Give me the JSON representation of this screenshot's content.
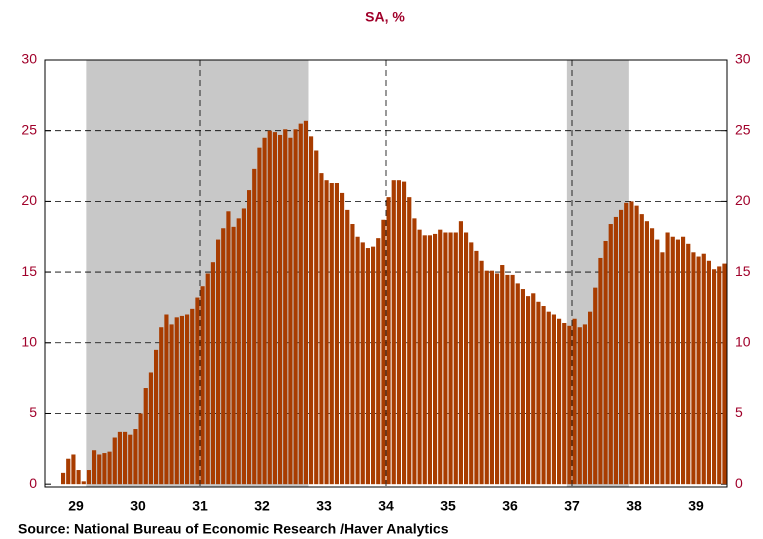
{
  "chart_data": {
    "type": "bar",
    "title": "SA, %",
    "source": "Source:  National Bureau of Economic Research /Haver Analytics",
    "color": "#a83c00",
    "axis_label_color": "#a0002a",
    "shade_color": "#c8c8c8",
    "xlim": [
      29,
      40
    ],
    "ylim": [
      -0.2,
      30
    ],
    "yticks": [
      0,
      5,
      10,
      15,
      20,
      25,
      30
    ],
    "y2ticks": [
      0,
      5,
      10,
      15,
      20,
      25,
      30
    ],
    "xticks": [
      {
        "value": 29.5,
        "label": "29"
      },
      {
        "value": 30.5,
        "label": "30"
      },
      {
        "value": 31.5,
        "label": "31"
      },
      {
        "value": 32.5,
        "label": "32"
      },
      {
        "value": 33.5,
        "label": "33"
      },
      {
        "value": 34.5,
        "label": "34"
      },
      {
        "value": 35.5,
        "label": "35"
      },
      {
        "value": 36.5,
        "label": "36"
      },
      {
        "value": 37.5,
        "label": "37"
      },
      {
        "value": 38.5,
        "label": "38"
      },
      {
        "value": 39.5,
        "label": "39"
      }
    ],
    "xgrid": [
      31.5,
      34.5,
      37.5
    ],
    "grid": true,
    "shaded_ranges": [
      [
        29.667,
        33.25
      ],
      [
        37.417,
        38.417
      ]
    ],
    "x": [
      29,
      29.083,
      29.167,
      29.25,
      29.333,
      29.417,
      29.5,
      29.583,
      29.667,
      29.75,
      29.833,
      29.917,
      30,
      30.083,
      30.167,
      30.25,
      30.333,
      30.417,
      30.5,
      30.583,
      30.667,
      30.75,
      30.833,
      30.917,
      31,
      31.083,
      31.167,
      31.25,
      31.333,
      31.417,
      31.5,
      31.583,
      31.667,
      31.75,
      31.833,
      31.917,
      32,
      32.083,
      32.167,
      32.25,
      32.333,
      32.417,
      32.5,
      32.583,
      32.667,
      32.75,
      32.833,
      32.917,
      33,
      33.083,
      33.167,
      33.25,
      33.333,
      33.417,
      33.5,
      33.583,
      33.667,
      33.75,
      33.833,
      33.917,
      34,
      34.083,
      34.167,
      34.25,
      34.333,
      34.417,
      34.5,
      34.583,
      34.667,
      34.75,
      34.833,
      34.917,
      35,
      35.083,
      35.167,
      35.25,
      35.333,
      35.417,
      35.5,
      35.583,
      35.667,
      35.75,
      35.833,
      35.917,
      36,
      36.083,
      36.167,
      36.25,
      36.333,
      36.417,
      36.5,
      36.583,
      36.667,
      36.75,
      36.833,
      36.917,
      37,
      37.083,
      37.167,
      37.25,
      37.333,
      37.417,
      37.5,
      37.583,
      37.667,
      37.75,
      37.833,
      37.917,
      38,
      38.083,
      38.167,
      38.25,
      38.333,
      38.417,
      38.5,
      38.583,
      38.667,
      38.75,
      38.833,
      38.917,
      39,
      39.083,
      39.167,
      39.25,
      39.333,
      39.417,
      39.5,
      39.583,
      39.667,
      39.75,
      39.833,
      39.917
    ],
    "values": [
      0,
      0,
      0,
      0.8,
      1.8,
      2.1,
      1.0,
      0.2,
      1.0,
      2.4,
      2.1,
      2.2,
      2.3,
      3.3,
      3.7,
      3.7,
      3.5,
      3.9,
      5.0,
      6.8,
      7.9,
      9.5,
      11.1,
      12.0,
      11.3,
      11.8,
      11.9,
      12.0,
      12.4,
      13.2,
      14.0,
      14.9,
      15.7,
      17.3,
      18.1,
      19.3,
      18.2,
      18.8,
      19.5,
      20.8,
      22.3,
      23.8,
      24.5,
      25.0,
      24.9,
      24.7,
      25.1,
      24.5,
      25.1,
      25.5,
      25.7,
      24.6,
      23.6,
      22.0,
      21.5,
      21.3,
      21.3,
      20.6,
      19.4,
      18.4,
      17.5,
      17.1,
      16.7,
      16.8,
      17.4,
      18.7,
      20.3,
      21.5,
      21.5,
      21.4,
      20.3,
      18.8,
      18.0,
      17.6,
      17.6,
      17.7,
      18.0,
      17.8,
      17.8,
      17.8,
      18.6,
      17.8,
      17.1,
      16.5,
      15.8,
      15.1,
      15.1,
      14.9,
      15.5,
      14.8,
      14.8,
      14.2,
      13.8,
      13.3,
      13.5,
      12.9,
      12.6,
      12.2,
      12.0,
      11.7,
      11.4,
      11.2,
      11.7,
      11.1,
      11.3,
      12.2,
      13.9,
      16.0,
      17.2,
      18.4,
      18.9,
      19.4,
      19.9,
      20.0,
      19.7,
      19.1,
      18.6,
      18.1,
      17.3,
      16.4,
      17.8,
      17.5,
      17.3,
      17.5,
      17.0,
      16.4,
      16.1,
      16.3,
      15.8,
      15.2,
      15.4,
      15.6
    ]
  }
}
